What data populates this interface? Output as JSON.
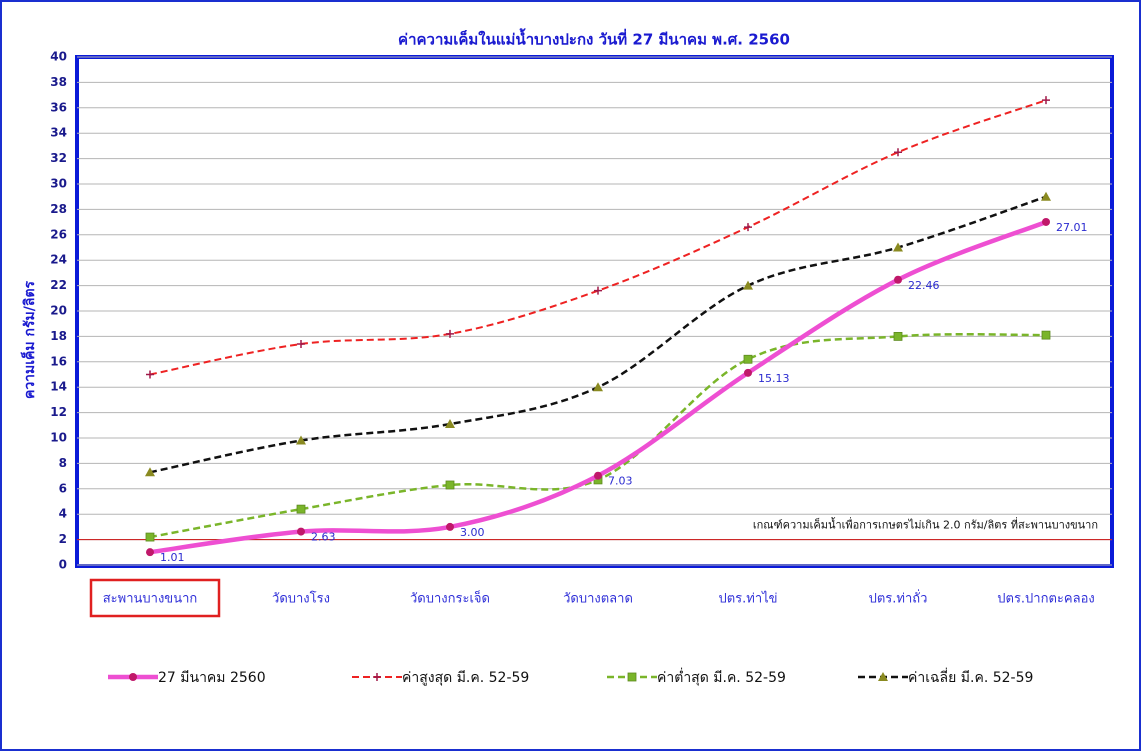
{
  "chart_data": {
    "type": "line",
    "title": "ค่าความเค็มในแม่น้ำบางปะกง วันที่ 27 มีนาคม พ.ศ. 2560",
    "y_label": "ความเค็ม กรัม/ลิตร",
    "categories": [
      "สะพานบางขนาก",
      "วัดบางโรง",
      "วัดบางกระเจ็ด",
      "วัดบางตลาด",
      "ปตร.ท่าไข่",
      "ปตร.ท่าถั่ว",
      "ปตร.ปากตะคลอง"
    ],
    "ylim": [
      0,
      40
    ],
    "yticks": [
      0,
      2,
      4,
      6,
      8,
      10,
      12,
      14,
      16,
      18,
      20,
      22,
      24,
      26,
      28,
      30,
      32,
      34,
      36,
      38,
      40
    ],
    "grid": true,
    "threshold": 2,
    "threshold_label": "เกณฑ์ความเค็มน้ำเพื่อการเกษตรไม่เกิน 2.0 กรัม/ลิตร ที่สะพานบางขนาก",
    "series": [
      {
        "name": "27 มีนาคม 2560",
        "color": "#ee4fd2",
        "values": [
          1.01,
          2.63,
          3.0,
          7.03,
          15.13,
          22.46,
          27.01
        ],
        "value_labels": [
          "1.01",
          "2.63",
          "3.00",
          "7.03",
          "15.13",
          "22.46",
          "27.01"
        ]
      },
      {
        "name": "ค่าสูงสุด มี.ค. 52-59",
        "color": "#ee2222",
        "values": [
          15.0,
          17.4,
          18.2,
          21.6,
          26.6,
          32.5,
          36.6
        ]
      },
      {
        "name": "ค่าต่ำสุด มี.ค. 52-59",
        "color": "#7ab52a",
        "values": [
          2.2,
          4.4,
          6.3,
          6.7,
          16.2,
          18.0,
          18.1
        ]
      },
      {
        "name": "ค่าเฉลี่ย มี.ค. 52-59",
        "color": "#111111",
        "values": [
          7.3,
          9.8,
          11.1,
          14.0,
          22.0,
          25.0,
          29.0
        ]
      }
    ]
  }
}
